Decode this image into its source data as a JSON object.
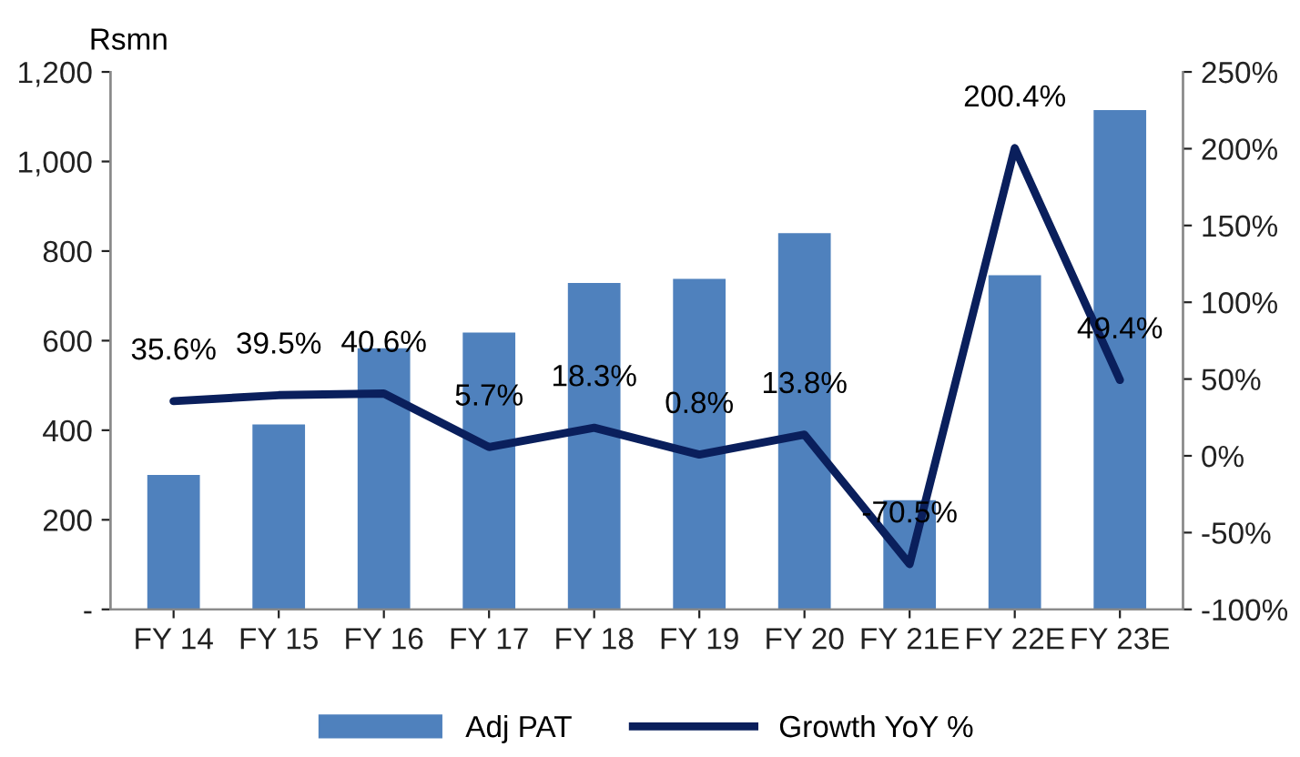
{
  "chart_data": {
    "type": "bar",
    "ylabel": "Rsmn",
    "categories": [
      "FY 14",
      "FY 15",
      "FY 16",
      "FY 17",
      "FY 18",
      "FY 19",
      "FY 20",
      "FY 21E",
      "FY 22E",
      "FY 23E"
    ],
    "series": [
      {
        "name": "Adj PAT",
        "color": "#4f81bd",
        "values": [
          300,
          413,
          583,
          618,
          729,
          738,
          840,
          244,
          746,
          1115
        ]
      },
      {
        "name": "Growth YoY %",
        "type": "line",
        "axis": "y2",
        "color": "#0a1f5c",
        "values": [
          35.6,
          39.5,
          40.6,
          5.7,
          18.3,
          0.8,
          13.8,
          -70.5,
          200.4,
          49.4
        ],
        "value_labels": [
          "35.6%",
          "39.5%",
          "40.6%",
          "5.7%",
          "18.3%",
          "0.8%",
          "13.8%",
          "-70.5%",
          "200.4%",
          "49.4%"
        ]
      }
    ],
    "ylim": [
      0,
      1200
    ],
    "yticks": [
      {
        "value": 0,
        "label": "-"
      },
      200,
      400,
      600,
      800,
      {
        "value": 1000,
        "label": "1,000"
      },
      {
        "value": 1200,
        "label": "1,200"
      }
    ],
    "y2lim": [
      -100,
      250
    ],
    "y2ticks": [
      {
        "value": -100,
        "label": "-100%"
      },
      {
        "value": -50,
        "label": "-50%"
      },
      {
        "value": 0,
        "label": "0%"
      },
      {
        "value": 50,
        "label": "50%"
      },
      {
        "value": 100,
        "label": "100%"
      },
      {
        "value": 150,
        "label": "150%"
      },
      {
        "value": 200,
        "label": "200%"
      },
      {
        "value": 250,
        "label": "250%"
      }
    ],
    "legend": "bottom",
    "grid": false
  }
}
